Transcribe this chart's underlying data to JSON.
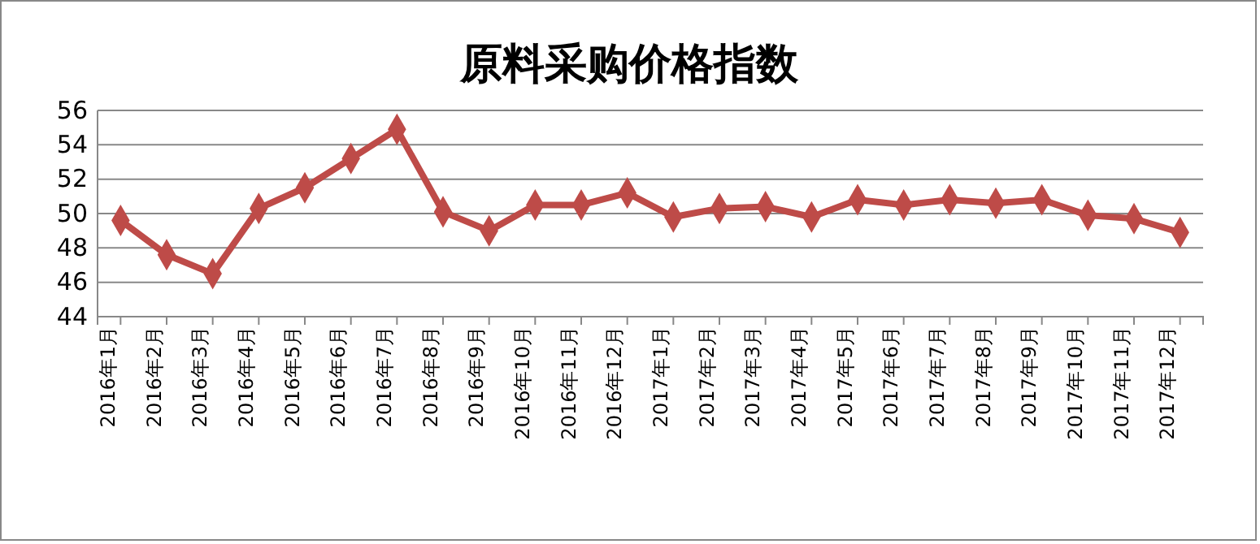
{
  "chart_data": {
    "type": "line",
    "title": "原料采购价格指数",
    "categories": [
      "2016年1月",
      "2016年2月",
      "2016年3月",
      "2016年4月",
      "2016年5月",
      "2016年6月",
      "2016年7月",
      "2016年8月",
      "2016年9月",
      "2016年10月",
      "2016年11月",
      "2016年12月",
      "2017年1月",
      "2017年2月",
      "2017年3月",
      "2017年4月",
      "2017年5月",
      "2017年6月",
      "2017年7月",
      "2017年8月",
      "2017年9月",
      "2017年10月",
      "2017年11月",
      "2017年12月"
    ],
    "series": [
      {
        "color": "#be4b48",
        "values": [
          49.6,
          47.6,
          46.5,
          50.3,
          51.5,
          53.2,
          54.9,
          50.1,
          49.0,
          50.5,
          50.5,
          51.2,
          49.8,
          50.3,
          50.4,
          49.8,
          50.8,
          50.5,
          50.8,
          50.6,
          50.8,
          49.9,
          49.7,
          48.9
        ]
      }
    ],
    "ylim": [
      44,
      56
    ],
    "yticks": [
      44,
      46,
      48,
      50,
      52,
      54,
      56
    ],
    "grid": "y",
    "marker": "diamond",
    "line_style": "solid"
  }
}
